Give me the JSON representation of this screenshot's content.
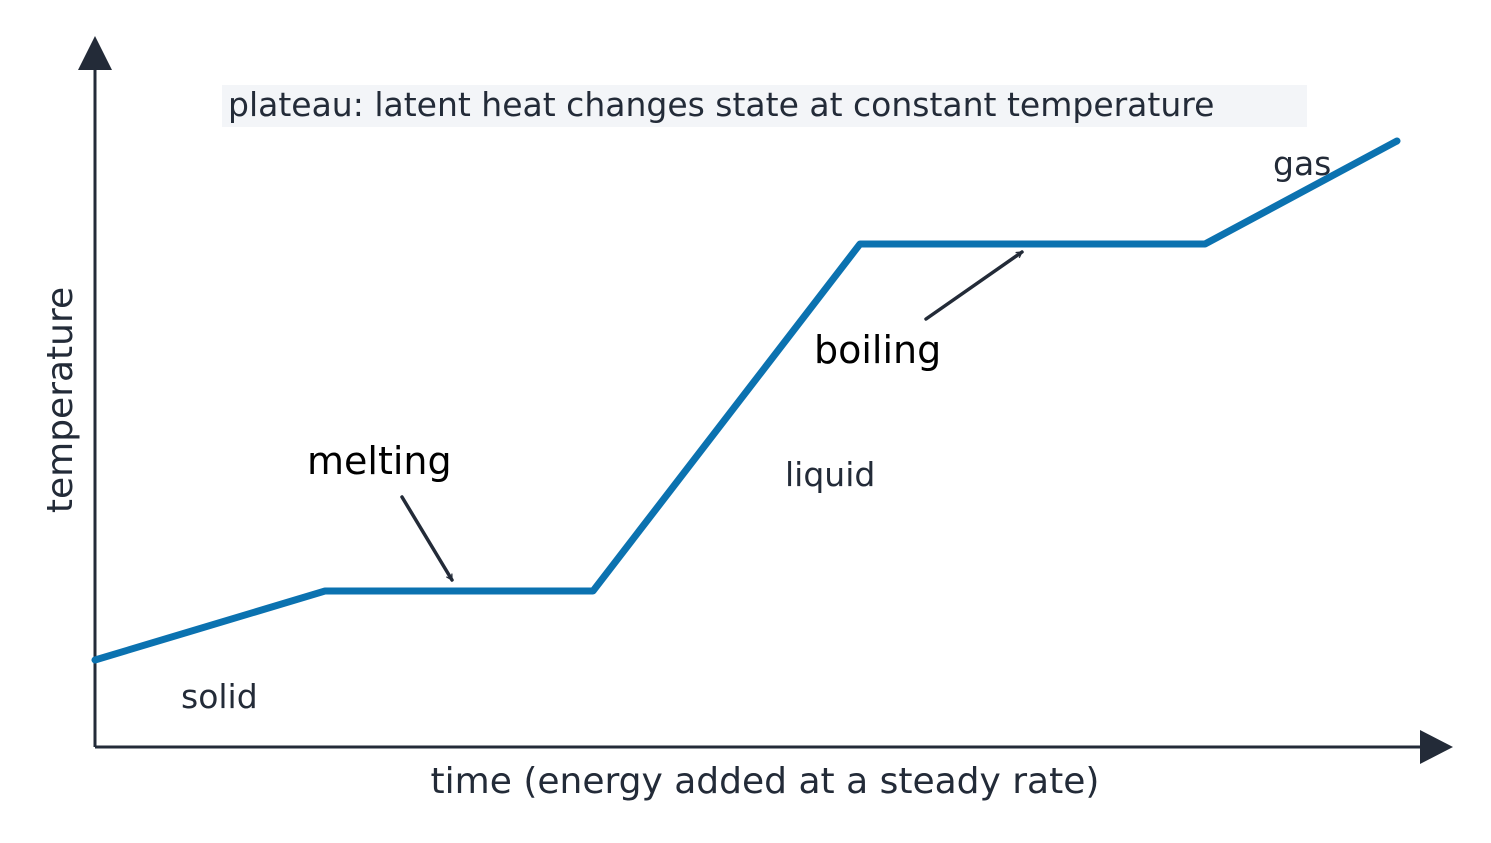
{
  "annotation": "plateau: latent heat changes state at constant temperature",
  "axes": {
    "x_label": "time (energy added at a steady rate)",
    "y_label": "temperature"
  },
  "phases": {
    "solid": "solid",
    "liquid": "liquid",
    "gas": "gas"
  },
  "transitions": {
    "melting": "melting",
    "boiling": "boiling"
  }
}
